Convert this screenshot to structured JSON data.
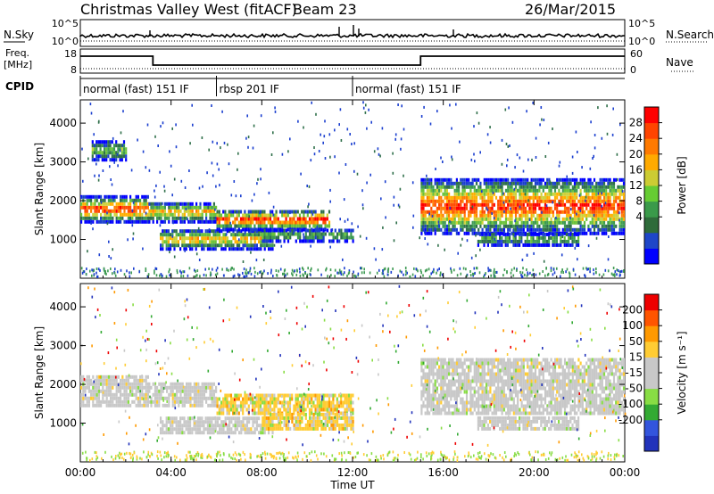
{
  "header": {
    "station": "Christmas Valley West (fitACF)",
    "beam": "Beam 23",
    "date": "26/Mar/2015"
  },
  "top_panels": {
    "nsky_label": "N.Sky",
    "nsky_ticks": [
      "10^5",
      "10^0"
    ],
    "nsearch_label": "N.Search",
    "nsearch_ticks": [
      "10^5",
      "10^0"
    ],
    "freq_label_1": "Freq.",
    "freq_label_2": "[MHz]",
    "freq_ticks": [
      "18",
      "8"
    ],
    "nave_label": "Nave",
    "nave_ticks": [
      "60",
      "0"
    ],
    "cpid_label": "CPID"
  },
  "cpid_segments": [
    {
      "label": "normal (fast) 151 IF",
      "start_hour": 0,
      "end_hour": 6
    },
    {
      "label": "rbsp 201 IF",
      "start_hour": 6,
      "end_hour": 12
    },
    {
      "label": "normal (fast) 151 IF",
      "start_hour": 12,
      "end_hour": 24
    }
  ],
  "chart_data": [
    {
      "type": "heatmap",
      "title": "",
      "xlabel": "Time UT",
      "ylabel": "Slant Range [km]",
      "xlim": [
        0,
        24
      ],
      "ylim": [
        0,
        4600
      ],
      "x_ticks": [
        {
          "value": 0,
          "label": "00:00"
        },
        {
          "value": 4,
          "label": "04:00"
        },
        {
          "value": 8,
          "label": "08:00"
        },
        {
          "value": 12,
          "label": "12:00"
        },
        {
          "value": 16,
          "label": "16:00"
        },
        {
          "value": 20,
          "label": "20:00"
        },
        {
          "value": 24,
          "label": "00:00"
        }
      ],
      "y_ticks": [
        1000,
        2000,
        3000,
        4000
      ],
      "colorbar": {
        "label": "Power [dB]",
        "ticks": [
          "28",
          "24",
          "20",
          "16",
          "12",
          "8",
          "4"
        ],
        "colors": [
          "#0000ff",
          "#1e46c8",
          "#2e6b3a",
          "#3a9a4a",
          "#66cc33",
          "#cccc33",
          "#ffaa00",
          "#ff7a00",
          "#ff4400",
          "#ff0000"
        ]
      },
      "bands": [
        {
          "t0": 0,
          "t1": 3,
          "r0": 1500,
          "r1": 2150,
          "core": "high"
        },
        {
          "t0": 3,
          "t1": 6,
          "r0": 1500,
          "r1": 2000,
          "core": "mid"
        },
        {
          "t0": 3.5,
          "t1": 8.5,
          "r0": 800,
          "r1": 1300,
          "core": "mid"
        },
        {
          "t0": 6,
          "t1": 11,
          "r0": 1300,
          "r1": 1800,
          "core": "high"
        },
        {
          "t0": 8,
          "t1": 12,
          "r0": 1000,
          "r1": 1300,
          "core": "low"
        },
        {
          "t0": 15,
          "t1": 24,
          "r0": 1200,
          "r1": 2600,
          "core": "high"
        },
        {
          "t0": 17.5,
          "t1": 22,
          "r0": 900,
          "r1": 1200,
          "core": "low"
        },
        {
          "t0": 0.5,
          "t1": 2,
          "r0": 3100,
          "r1": 3600,
          "core": "low"
        }
      ]
    },
    {
      "type": "heatmap",
      "title": "",
      "xlabel": "Time UT",
      "ylabel": "Slant Range [km]",
      "xlim": [
        0,
        24
      ],
      "ylim": [
        0,
        4600
      ],
      "x_ticks": [
        {
          "value": 0,
          "label": "00:00"
        },
        {
          "value": 4,
          "label": "04:00"
        },
        {
          "value": 8,
          "label": "08:00"
        },
        {
          "value": 12,
          "label": "12:00"
        },
        {
          "value": 16,
          "label": "16:00"
        },
        {
          "value": 20,
          "label": "20:00"
        },
        {
          "value": 24,
          "label": "00:00"
        }
      ],
      "y_ticks": [
        1000,
        2000,
        3000,
        4000
      ],
      "colorbar": {
        "label": "Velocity [m s⁻¹]",
        "ticks": [
          "200",
          "100",
          "50",
          "15",
          "-15",
          "-50",
          "-100",
          "-200"
        ],
        "colors": [
          "#2233bb",
          "#3355dd",
          "#33aa33",
          "#88dd44",
          "#c8c8c8",
          "#c8c8c8",
          "#ffcc33",
          "#ff9900",
          "#ff5500",
          "#ee0000"
        ]
      },
      "bands": [
        {
          "t0": 0,
          "t1": 3,
          "r0": 1500,
          "r1": 2300,
          "core": "gray"
        },
        {
          "t0": 3,
          "t1": 6,
          "r0": 1500,
          "r1": 2100,
          "core": "gray"
        },
        {
          "t0": 3.5,
          "t1": 8.5,
          "r0": 800,
          "r1": 1200,
          "core": "gray"
        },
        {
          "t0": 6,
          "t1": 12,
          "r0": 1300,
          "r1": 1800,
          "core": "yellow"
        },
        {
          "t0": 8,
          "t1": 12,
          "r0": 900,
          "r1": 1300,
          "core": "yellow"
        },
        {
          "t0": 15,
          "t1": 24,
          "r0": 1300,
          "r1": 2700,
          "core": "gray"
        },
        {
          "t0": 17.5,
          "t1": 22,
          "r0": 900,
          "r1": 1200,
          "core": "gray"
        }
      ]
    }
  ]
}
